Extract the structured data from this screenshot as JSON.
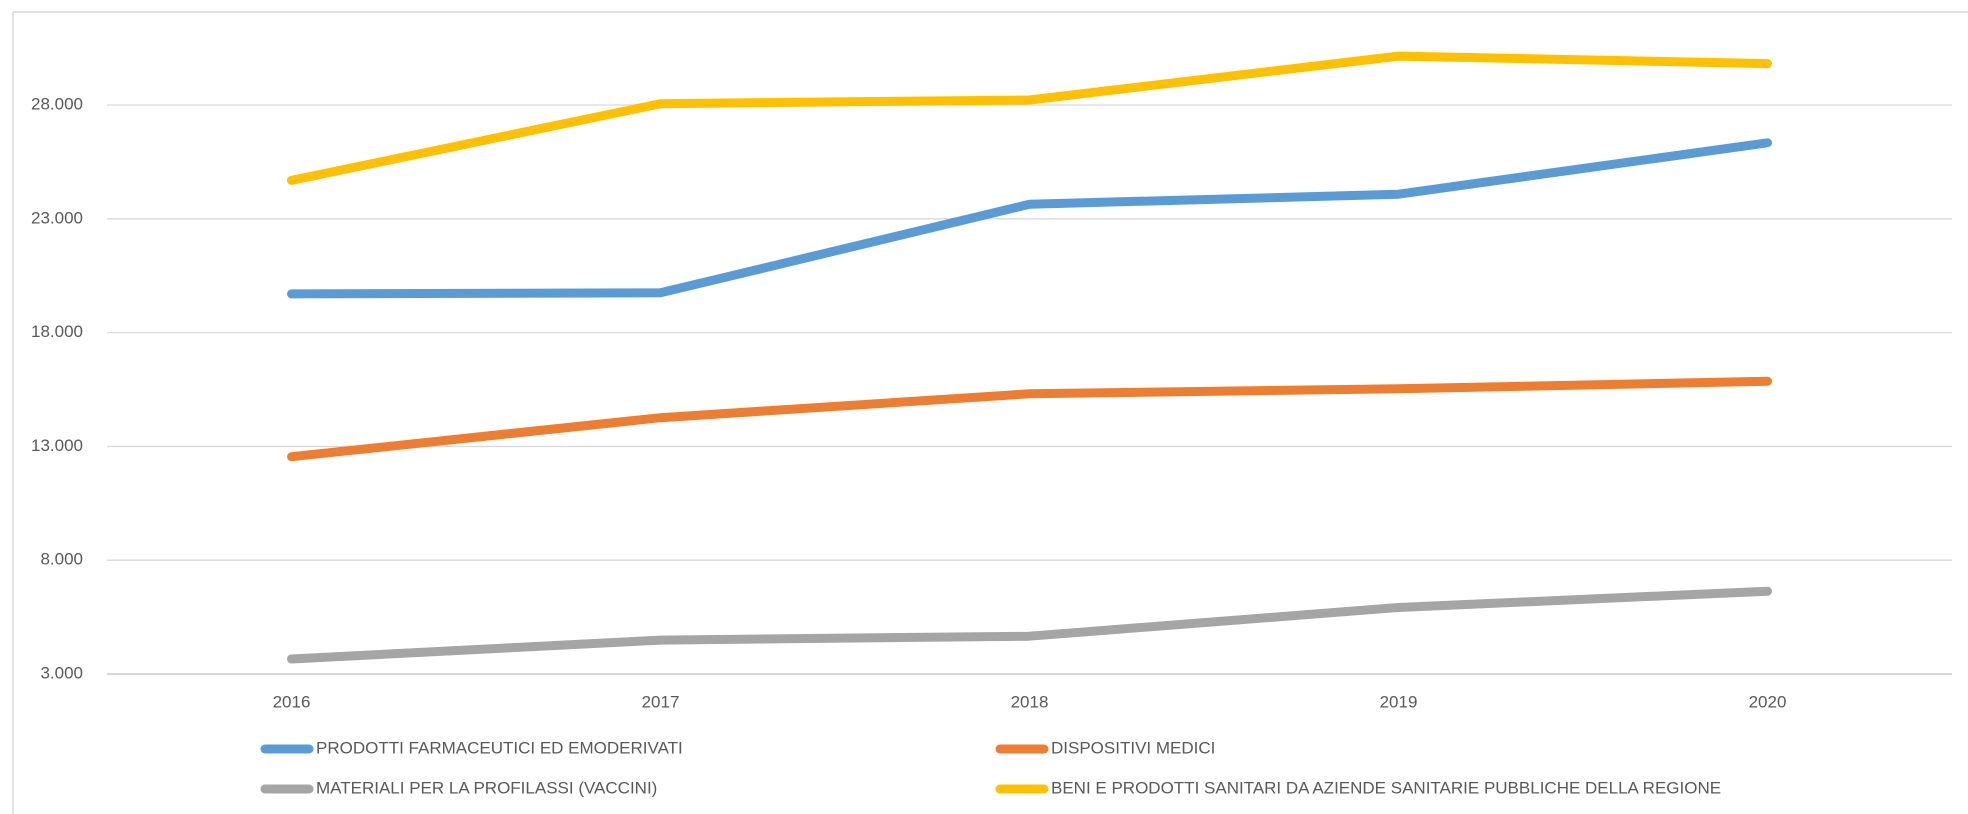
{
  "chart_data": {
    "type": "line",
    "categories": [
      "2016",
      "2017",
      "2018",
      "2019",
      "2020"
    ],
    "series": [
      {
        "name": "PRODOTTI FARMACEUTICI ED EMODERIVATI",
        "color": "#5b9bd5",
        "values": [
          19700,
          19750,
          23640,
          24080,
          26340
        ]
      },
      {
        "name": "DISPOSITIVI MEDICI",
        "color": "#ed7d31",
        "values": [
          12550,
          14260,
          15310,
          15530,
          15860
        ]
      },
      {
        "name": "MATERIALI PER LA PROFILASSI (VACCINI)",
        "color": "#a5a5a5",
        "values": [
          3660,
          4490,
          4660,
          5920,
          6640
        ]
      },
      {
        "name": "BENI E PRODOTTI SANITARI DA AZIENDE SANITARIE PUBBLICHE DELLA REGIONE",
        "color": "#ffc000",
        "values": [
          24690,
          28060,
          28220,
          30150,
          29820
        ]
      }
    ],
    "ylim": [
      3000,
      32000
    ],
    "yticks": [
      {
        "value": 3000,
        "label": "3.000"
      },
      {
        "value": 8000,
        "label": "8.000"
      },
      {
        "value": 13000,
        "label": "13.000"
      },
      {
        "value": 18000,
        "label": "18.000"
      },
      {
        "value": 23000,
        "label": "23.000"
      },
      {
        "value": 28000,
        "label": "28.000"
      }
    ],
    "grid": true,
    "legend": "bottom"
  }
}
